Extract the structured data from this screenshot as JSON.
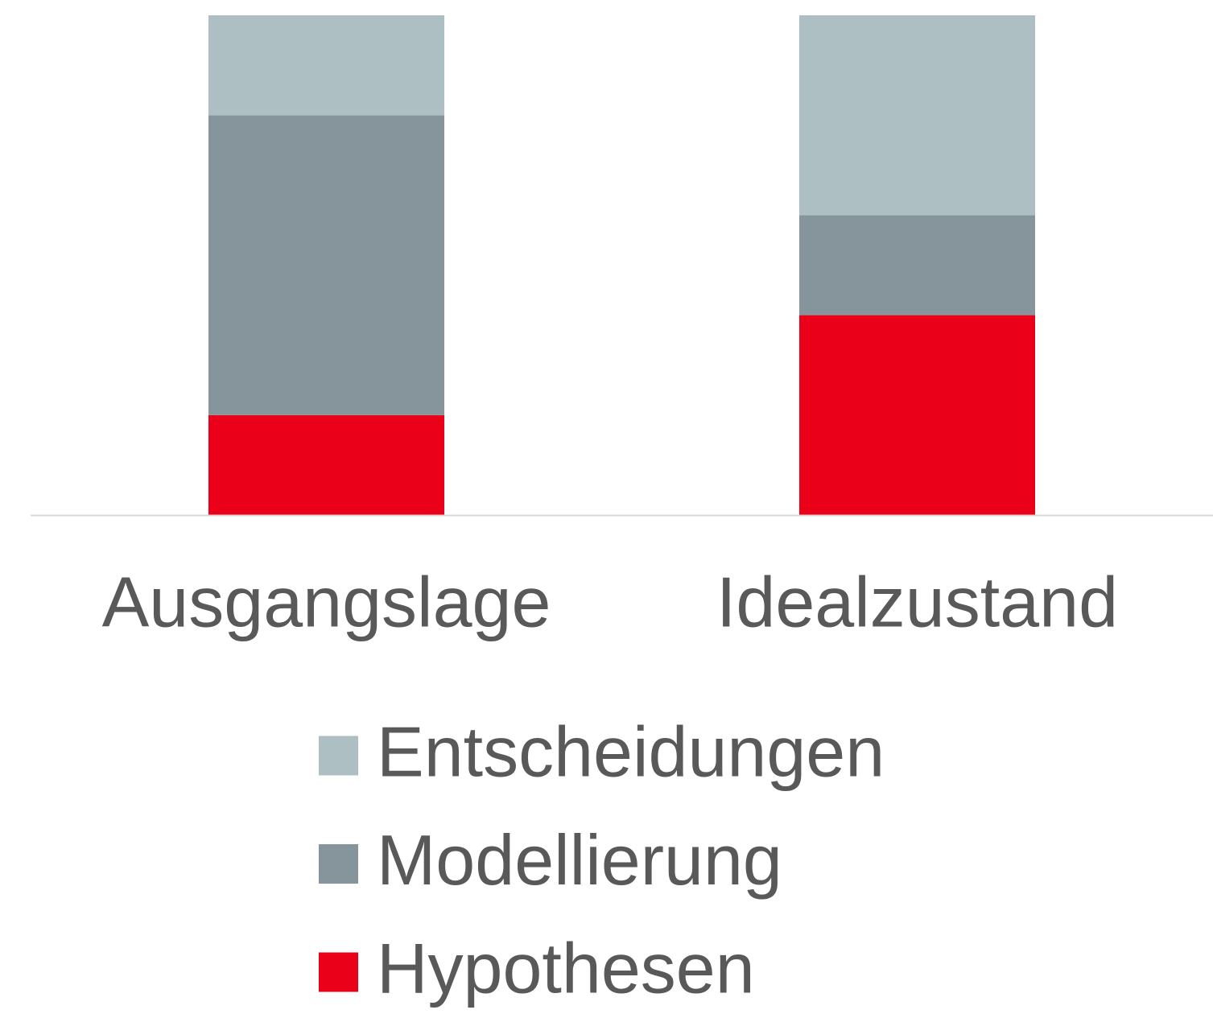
{
  "chart_data": {
    "type": "stacked_bar",
    "categories": [
      "Ausgangslage",
      "Idealzustand"
    ],
    "series": [
      {
        "name": "Hypothesen",
        "color": "#ea0019",
        "values": [
          20,
          40
        ]
      },
      {
        "name": "Modellierung",
        "color": "#85959b",
        "values": [
          60,
          20
        ]
      },
      {
        "name": "Entscheidungen",
        "color": "#adbfc3",
        "values": [
          20,
          40
        ]
      }
    ],
    "legend": "bottom"
  }
}
